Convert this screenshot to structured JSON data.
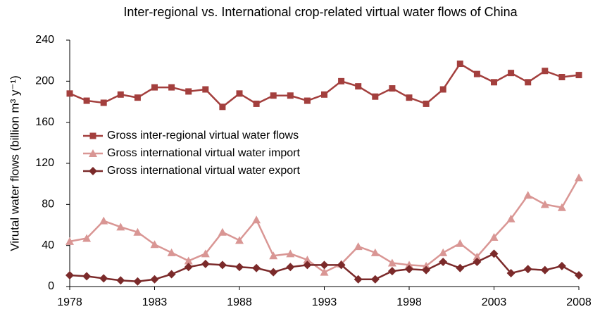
{
  "chart_data": {
    "type": "line",
    "title": "Inter-regional vs. International crop-related virtual water flows of China",
    "y_label": "Virutal water flows (billion m³ y⁻¹)",
    "x": [
      1978,
      1979,
      1980,
      1981,
      1982,
      1983,
      1984,
      1985,
      1986,
      1987,
      1988,
      1989,
      1990,
      1991,
      1992,
      1993,
      1994,
      1995,
      1996,
      1997,
      1998,
      1999,
      2000,
      2001,
      2002,
      2003,
      2004,
      2005,
      2006,
      2007,
      2008
    ],
    "series": [
      {
        "name": "Gross inter-regional virtual water flows",
        "color": "#a33f3d",
        "marker": "square",
        "values": [
          188,
          181,
          179,
          187,
          184,
          194,
          194,
          190,
          192,
          175,
          188,
          178,
          186,
          186,
          181,
          187,
          200,
          195,
          185,
          193,
          184,
          178,
          192,
          217,
          207,
          199,
          208,
          199,
          210,
          204,
          206
        ]
      },
      {
        "name": "Gross international virtual water import",
        "color": "#d99694",
        "marker": "triangle",
        "values": [
          44,
          47,
          64,
          58,
          53,
          41,
          33,
          25,
          32,
          53,
          45,
          65,
          30,
          32,
          26,
          14,
          22,
          39,
          33,
          23,
          21,
          20,
          33,
          42,
          29,
          48,
          66,
          89,
          80,
          77,
          106
        ]
      },
      {
        "name": "Gross international virtual water export",
        "color": "#7b2a2a",
        "marker": "diamond",
        "values": [
          11,
          10,
          8,
          6,
          5,
          7,
          12,
          19,
          22,
          21,
          19,
          18,
          14,
          19,
          21,
          21,
          21,
          7,
          7,
          15,
          17,
          16,
          24,
          18,
          24,
          32,
          13,
          17,
          16,
          20,
          11
        ]
      }
    ],
    "xlim": [
      1978,
      2008
    ],
    "xticks": [
      1978,
      1983,
      1988,
      1993,
      1998,
      2003,
      2008
    ],
    "ylim": [
      0,
      240
    ],
    "yticks": [
      0,
      40,
      80,
      120,
      160,
      200,
      240
    ],
    "legend": "left"
  }
}
